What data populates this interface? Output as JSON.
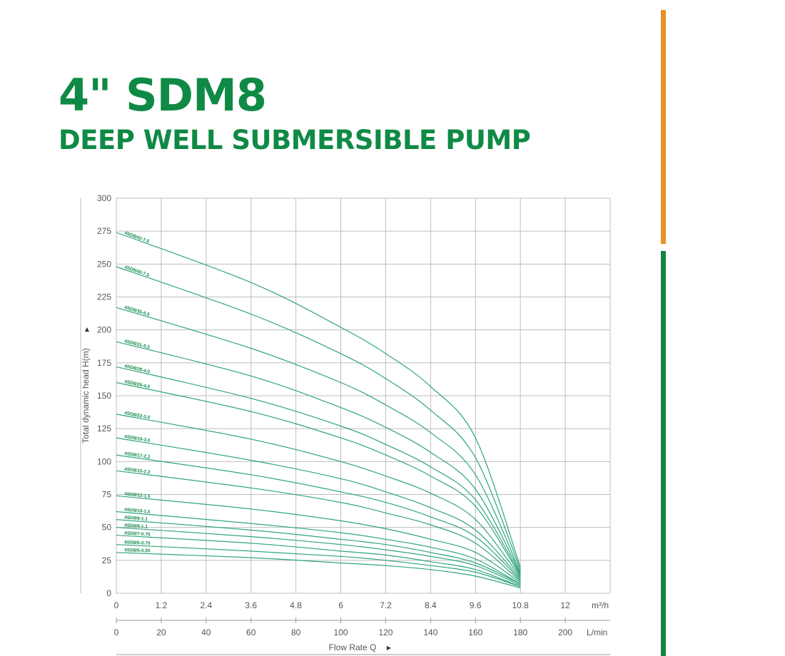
{
  "title": "4\" SDM8",
  "subtitle": "DEEP WELL SUBMERSIBLE PUMP",
  "colors": {
    "brand": "#0f8a45",
    "accent_orange": "#e8902a",
    "accent_green": "#13843f",
    "curve": "#2fa57a",
    "grid": "#bdbdbd"
  },
  "chart_data": {
    "type": "line",
    "title": "",
    "ylabel": "Total dynamic head H(m)",
    "ylim": [
      0,
      300
    ],
    "yticks": [
      "0",
      "25",
      "50",
      "75",
      "100",
      "125",
      "150",
      "175",
      "200",
      "225",
      "250",
      "275",
      "300"
    ],
    "xlim_m3h": [
      0,
      13.2
    ],
    "xticks_m3h": [
      "0",
      "1.2",
      "2.4",
      "3.6",
      "4.8",
      "6",
      "7.2",
      "8.4",
      "9.6",
      "10.8",
      "12"
    ],
    "xunit_m3h": "m³/h",
    "xticks_lmin": [
      "0",
      "20",
      "40",
      "60",
      "80",
      "100",
      "120",
      "140",
      "160",
      "180",
      "200"
    ],
    "xunit_lmin": "L/min",
    "xlabel": "Flow Rate Q",
    "series": [
      {
        "name": "4SD8/42-7.5",
        "values": [
          [
            0,
            274
          ],
          [
            3.6,
            236
          ],
          [
            6,
            202
          ],
          [
            7.2,
            182
          ],
          [
            8.4,
            157
          ],
          [
            9.6,
            118
          ],
          [
            10.8,
            20
          ]
        ]
      },
      {
        "name": "4SD8/40-7.5",
        "values": [
          [
            0,
            248
          ],
          [
            3.6,
            212
          ],
          [
            6,
            182
          ],
          [
            7.2,
            163
          ],
          [
            8.4,
            139
          ],
          [
            9.6,
            103
          ],
          [
            10.8,
            18
          ]
        ]
      },
      {
        "name": "4SD8/35-5.5",
        "values": [
          [
            0,
            217
          ],
          [
            3.6,
            186
          ],
          [
            6,
            160
          ],
          [
            7.2,
            143
          ],
          [
            8.4,
            122
          ],
          [
            9.6,
            90
          ],
          [
            10.8,
            16
          ]
        ]
      },
      {
        "name": "4SD8/31-5.5",
        "values": [
          [
            0,
            191
          ],
          [
            3.6,
            165
          ],
          [
            6,
            141
          ],
          [
            7.2,
            126
          ],
          [
            8.4,
            107
          ],
          [
            9.6,
            79
          ],
          [
            10.8,
            15
          ]
        ]
      },
      {
        "name": "4SD8/28-4.0",
        "values": [
          [
            0,
            172
          ],
          [
            3.6,
            148
          ],
          [
            6,
            127
          ],
          [
            7.2,
            113
          ],
          [
            8.4,
            96
          ],
          [
            9.6,
            71
          ],
          [
            10.8,
            14
          ]
        ]
      },
      {
        "name": "4SD8/26-4.0",
        "values": [
          [
            0,
            160
          ],
          [
            3.6,
            138
          ],
          [
            6,
            118
          ],
          [
            7.2,
            105
          ],
          [
            8.4,
            89
          ],
          [
            9.6,
            66
          ],
          [
            10.8,
            13
          ]
        ]
      },
      {
        "name": "4SD8/22-3.0",
        "values": [
          [
            0,
            136
          ],
          [
            3.6,
            117
          ],
          [
            6,
            100
          ],
          [
            7.2,
            89
          ],
          [
            8.4,
            76
          ],
          [
            9.6,
            56
          ],
          [
            10.8,
            12
          ]
        ]
      },
      {
        "name": "4SD8/19-3.0",
        "values": [
          [
            0,
            118
          ],
          [
            3.6,
            101
          ],
          [
            6,
            87
          ],
          [
            7.2,
            77
          ],
          [
            8.4,
            65
          ],
          [
            9.6,
            48
          ],
          [
            10.8,
            11
          ]
        ]
      },
      {
        "name": "4SD8/17-2.2",
        "values": [
          [
            0,
            105
          ],
          [
            3.6,
            90
          ],
          [
            6,
            77
          ],
          [
            7.2,
            69
          ],
          [
            8.4,
            58
          ],
          [
            9.6,
            43
          ],
          [
            10.8,
            10
          ]
        ]
      },
      {
        "name": "4SD8/15-2.2",
        "values": [
          [
            0,
            93
          ],
          [
            3.6,
            80
          ],
          [
            6,
            69
          ],
          [
            7.2,
            61
          ],
          [
            8.4,
            52
          ],
          [
            9.6,
            38
          ],
          [
            10.8,
            9
          ]
        ]
      },
      {
        "name": "4SD8/12-1.5",
        "values": [
          [
            0,
            74
          ],
          [
            3.6,
            64
          ],
          [
            6,
            55
          ],
          [
            7.2,
            49
          ],
          [
            8.4,
            41
          ],
          [
            9.6,
            31
          ],
          [
            10.8,
            8
          ]
        ]
      },
      {
        "name": "4SD8/10-1.5",
        "values": [
          [
            0,
            62
          ],
          [
            3.6,
            53
          ],
          [
            6,
            46
          ],
          [
            7.2,
            41
          ],
          [
            8.4,
            35
          ],
          [
            9.6,
            26
          ],
          [
            10.8,
            7
          ]
        ]
      },
      {
        "name": "4SD8/9-1.1",
        "values": [
          [
            0,
            56
          ],
          [
            3.6,
            48
          ],
          [
            6,
            41
          ],
          [
            7.2,
            37
          ],
          [
            8.4,
            31
          ],
          [
            9.6,
            23
          ],
          [
            10.8,
            7
          ]
        ]
      },
      {
        "name": "4SD8/8-1.1",
        "values": [
          [
            0,
            50
          ],
          [
            3.6,
            43
          ],
          [
            6,
            37
          ],
          [
            7.2,
            33
          ],
          [
            8.4,
            28
          ],
          [
            9.6,
            21
          ],
          [
            10.8,
            6
          ]
        ]
      },
      {
        "name": "4SD8/7-0.75",
        "values": [
          [
            0,
            44
          ],
          [
            3.6,
            38
          ],
          [
            6,
            32
          ],
          [
            7.2,
            29
          ],
          [
            8.4,
            24
          ],
          [
            9.6,
            18
          ],
          [
            10.8,
            5
          ]
        ]
      },
      {
        "name": "4SD8/6-0.75",
        "values": [
          [
            0,
            37
          ],
          [
            3.6,
            32
          ],
          [
            6,
            28
          ],
          [
            7.2,
            25
          ],
          [
            8.4,
            21
          ],
          [
            9.6,
            16
          ],
          [
            10.8,
            5
          ]
        ]
      },
      {
        "name": "4SD8/5-0.55",
        "values": [
          [
            0,
            31
          ],
          [
            3.6,
            27
          ],
          [
            6,
            23
          ],
          [
            7.2,
            21
          ],
          [
            8.4,
            18
          ],
          [
            9.6,
            13
          ],
          [
            10.8,
            4
          ]
        ]
      }
    ]
  }
}
